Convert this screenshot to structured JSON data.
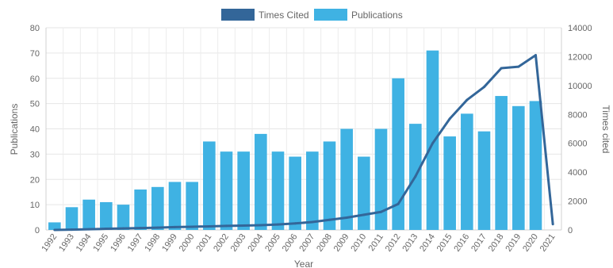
{
  "chart_data": {
    "type": "bar",
    "categories": [
      "1992",
      "1993",
      "1994",
      "1995",
      "1996",
      "1997",
      "1998",
      "1999",
      "2000",
      "2001",
      "2002",
      "2003",
      "2004",
      "2005",
      "2006",
      "2007",
      "2008",
      "2009",
      "2010",
      "2011",
      "2012",
      "2013",
      "2014",
      "2015",
      "2016",
      "2017",
      "2018",
      "2019",
      "2020",
      "2021"
    ],
    "series": [
      {
        "name": "Publications",
        "type": "bar",
        "axis": "left",
        "color": "#3fb2e3",
        "values": [
          3,
          9,
          12,
          11,
          10,
          16,
          17,
          19,
          19,
          35,
          31,
          31,
          38,
          31,
          29,
          31,
          35,
          40,
          29,
          40,
          60,
          42,
          71,
          37,
          46,
          39,
          53,
          49,
          51,
          0
        ]
      },
      {
        "name": "Times Cited",
        "type": "line",
        "axis": "right",
        "color": "#336699",
        "values": [
          0,
          20,
          50,
          80,
          100,
          130,
          160,
          200,
          220,
          250,
          280,
          300,
          330,
          380,
          450,
          550,
          700,
          850,
          1050,
          1250,
          1800,
          3700,
          6000,
          7700,
          9000,
          9900,
          11200,
          11300,
          12100,
          400
        ]
      }
    ],
    "xlabel": "Year",
    "ylabel": "Publications",
    "y2label": "Times cited",
    "ylim": [
      0,
      80
    ],
    "y2lim": [
      0,
      14000
    ],
    "yticks": [
      "0",
      "10",
      "20",
      "30",
      "40",
      "50",
      "60",
      "70",
      "80"
    ],
    "y2ticks": [
      "0",
      "2000",
      "4000",
      "6000",
      "8000",
      "10000",
      "12000",
      "14000"
    ],
    "grid": true,
    "legend": "top-center",
    "legend_items": [
      "Times Cited",
      "Publications"
    ]
  }
}
